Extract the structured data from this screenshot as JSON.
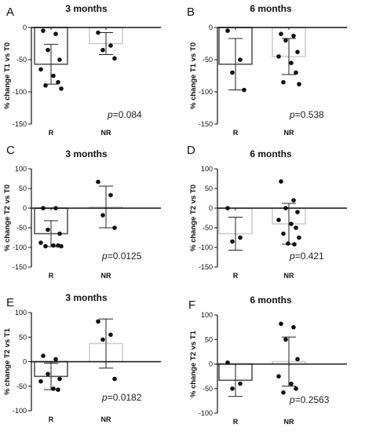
{
  "colors": {
    "bar_edge": "#555555",
    "bar_edge_light": "#cfcfcf",
    "dot": "#111111",
    "axis": "#111111"
  },
  "chart_data": [
    {
      "type": "bar",
      "letter": "A",
      "title": "3 months",
      "ylabel": "% change T1 vs T0",
      "categories": [
        "R",
        "NR"
      ],
      "ylim": [
        -150,
        0
      ],
      "yticks": [
        0,
        -50,
        -100,
        -150
      ],
      "series": [
        {
          "category": "R",
          "mean": -57,
          "sd": 31,
          "points": [
            -5,
            -10,
            -35,
            -50,
            -65,
            -75,
            -85,
            -90,
            -95
          ]
        },
        {
          "category": "NR",
          "mean": -25,
          "sd": 17,
          "points": [
            -8,
            -28,
            -35,
            -48
          ]
        }
      ],
      "p_prefix": "p",
      "p_value": "=0.084"
    },
    {
      "type": "bar",
      "letter": "B",
      "title": "6 months",
      "ylabel": "% change T1 vs T0",
      "categories": [
        "R",
        "NR"
      ],
      "ylim": [
        -150,
        0
      ],
      "yticks": [
        0,
        -50,
        -100,
        -150
      ],
      "series": [
        {
          "category": "R",
          "mean": -57,
          "sd": 40,
          "points": [
            -5,
            -50,
            -70,
            -97
          ]
        },
        {
          "category": "NR",
          "mean": -45,
          "sd": 28,
          "points": [
            -10,
            -13,
            -20,
            -38,
            -45,
            -55,
            -70,
            -85,
            -88
          ]
        }
      ],
      "p_prefix": "p",
      "p_value": "=0.538"
    },
    {
      "type": "bar",
      "letter": "C",
      "title": "3 months",
      "ylabel": "% change T2 vs T0",
      "categories": [
        "R",
        "NR"
      ],
      "ylim": [
        -150,
        100
      ],
      "yticks": [
        100,
        50,
        0,
        -50,
        -100,
        -150
      ],
      "series": [
        {
          "category": "R",
          "mean": -65,
          "sd": 33,
          "points": [
            0,
            0,
            -55,
            -65,
            -88,
            -95,
            -95,
            -97,
            -97
          ]
        },
        {
          "category": "NR",
          "mean": 3,
          "sd": 53,
          "points": [
            67,
            33,
            -18,
            -50
          ]
        }
      ],
      "p_prefix": "p",
      "p_value": "=0.0125"
    },
    {
      "type": "bar",
      "letter": "D",
      "title": "6 months",
      "ylabel": "% change T2 vs T0",
      "categories": [
        "R",
        "NR"
      ],
      "ylim": [
        -150,
        100
      ],
      "yticks": [
        100,
        50,
        0,
        -50,
        -100,
        -150
      ],
      "series": [
        {
          "category": "R",
          "mean": -65,
          "sd": 42,
          "points": [
            0,
            -75,
            -85
          ]
        },
        {
          "category": "NR",
          "mean": -40,
          "sd": 52,
          "points": [
            68,
            20,
            0,
            -10,
            -30,
            -40,
            -50,
            -65,
            -75,
            -90,
            -92
          ]
        }
      ],
      "p_prefix": "p",
      "p_value": "=0.421"
    },
    {
      "type": "bar",
      "letter": "E",
      "title": "3 months",
      "ylabel": "% change T2 vs T1",
      "categories": [
        "R",
        "NR"
      ],
      "ylim": [
        -100,
        100
      ],
      "yticks": [
        100,
        50,
        0,
        -50,
        -100
      ],
      "series": [
        {
          "category": "R",
          "mean": -30,
          "sd": 27,
          "points": [
            12,
            5,
            -25,
            -35,
            -40,
            -55,
            -57
          ]
        },
        {
          "category": "NR",
          "mean": 37,
          "sd": 50,
          "points": [
            82,
            55,
            45,
            -35
          ]
        }
      ],
      "p_prefix": "p",
      "p_value": "=0.0182"
    },
    {
      "type": "bar",
      "letter": "F",
      "title": "6 months",
      "ylabel": "% change T2 vs T1",
      "categories": [
        "R",
        "NR"
      ],
      "ylim": [
        -100,
        100
      ],
      "yticks": [
        100,
        50,
        0,
        -50,
        -100
      ],
      "series": [
        {
          "category": "R",
          "mean": -33,
          "sd": 33,
          "points": [
            3,
            -40,
            -50
          ]
        },
        {
          "category": "NR",
          "mean": 5,
          "sd": 50,
          "points": [
            82,
            75,
            50,
            10,
            -25,
            -40,
            -50,
            -58
          ]
        }
      ],
      "p_prefix": "p",
      "p_value": "=0.2563"
    }
  ]
}
